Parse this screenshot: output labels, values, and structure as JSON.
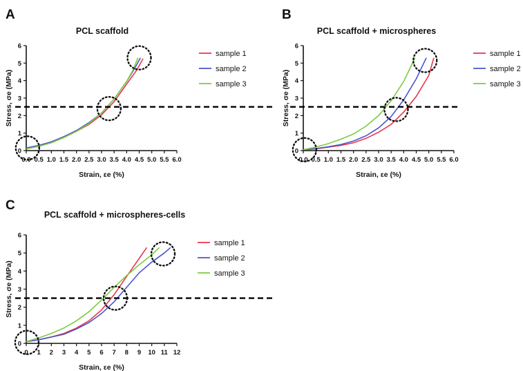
{
  "chart_data": [
    {
      "panel_label": "A",
      "type": "line",
      "title": "PCL scaffold",
      "xlabel": "Strain, εe (%)",
      "ylabel": "Stress, σe (MPa)",
      "xlim": [
        0,
        6
      ],
      "ylim": [
        0,
        6
      ],
      "xticks": [
        "0.0",
        "0.5",
        "1.0",
        "1.5",
        "2.0",
        "2.5",
        "3.0",
        "3.5",
        "4.0",
        "4.5",
        "5.0",
        "5.5",
        "6.0"
      ],
      "yticks": [
        "0",
        "1",
        "2",
        "3",
        "4",
        "5",
        "6"
      ],
      "reference_line_y": 2.5,
      "legend_position": "right",
      "series": [
        {
          "name": "sample 1",
          "color": "#e8354a",
          "x": [
            0.0,
            0.5,
            1.0,
            1.5,
            2.0,
            2.5,
            3.0,
            3.5,
            4.0,
            4.4,
            4.65
          ],
          "y": [
            0.1,
            0.25,
            0.45,
            0.75,
            1.1,
            1.5,
            2.05,
            2.8,
            3.8,
            4.6,
            5.25
          ]
        },
        {
          "name": "sample 2",
          "color": "#4a55c9",
          "x": [
            0.0,
            0.5,
            1.0,
            1.5,
            2.0,
            2.5,
            3.0,
            3.5,
            4.0,
            4.3,
            4.55
          ],
          "y": [
            0.15,
            0.3,
            0.5,
            0.8,
            1.15,
            1.6,
            2.15,
            2.95,
            3.95,
            4.65,
            5.3
          ]
        },
        {
          "name": "sample 3",
          "color": "#7acc3f",
          "x": [
            0.0,
            0.5,
            1.0,
            1.5,
            2.0,
            2.5,
            3.0,
            3.5,
            4.0,
            4.25,
            4.45
          ],
          "y": [
            0.1,
            0.25,
            0.45,
            0.75,
            1.1,
            1.55,
            2.15,
            2.95,
            3.95,
            4.6,
            5.3
          ]
        }
      ],
      "highlights": [
        [
          0.05,
          0.15
        ],
        [
          3.3,
          2.4
        ],
        [
          4.5,
          5.3
        ]
      ]
    },
    {
      "panel_label": "B",
      "type": "line",
      "title": "PCL scaffold + microspheres",
      "xlabel": "Strain, εe (%)",
      "ylabel": "Stress, σe (MPa)",
      "xlim": [
        0,
        6
      ],
      "ylim": [
        0,
        6
      ],
      "xticks": [
        "0.0",
        "0.5",
        "1.0",
        "1.5",
        "2.0",
        "2.5",
        "3.0",
        "3.5",
        "4.0",
        "4.5",
        "5.0",
        "5.5",
        "6.0"
      ],
      "yticks": [
        "0",
        "1",
        "2",
        "3",
        "4",
        "5",
        "6"
      ],
      "reference_line_y": 2.5,
      "legend_position": "right",
      "series": [
        {
          "name": "sample 1",
          "color": "#e8354a",
          "x": [
            0.0,
            0.5,
            1.0,
            1.5,
            2.0,
            2.5,
            3.0,
            3.5,
            4.0,
            4.5,
            5.0,
            5.2
          ],
          "y": [
            0.05,
            0.1,
            0.2,
            0.3,
            0.45,
            0.7,
            1.05,
            1.5,
            2.2,
            3.1,
            4.3,
            5.3
          ]
        },
        {
          "name": "sample 2",
          "color": "#4a55c9",
          "x": [
            0.0,
            0.5,
            1.0,
            1.5,
            2.0,
            2.5,
            3.0,
            3.5,
            4.0,
            4.5,
            4.9
          ],
          "y": [
            0.05,
            0.12,
            0.22,
            0.35,
            0.55,
            0.85,
            1.3,
            1.95,
            2.9,
            4.1,
            5.3
          ]
        },
        {
          "name": "sample 3",
          "color": "#7acc3f",
          "x": [
            0.0,
            0.5,
            1.0,
            1.5,
            2.0,
            2.5,
            3.0,
            3.5,
            4.0,
            4.45
          ],
          "y": [
            0.05,
            0.2,
            0.4,
            0.65,
            0.95,
            1.4,
            2.0,
            2.85,
            3.95,
            5.3
          ]
        }
      ],
      "highlights": [
        [
          0.05,
          0.05
        ],
        [
          3.7,
          2.35
        ],
        [
          4.85,
          5.15
        ]
      ]
    },
    {
      "panel_label": "C",
      "type": "line",
      "title": "PCL scaffold + microspheres-cells",
      "xlabel": "Strain, εe (%)",
      "ylabel": "Stress, σe (MPa)",
      "xlim": [
        0,
        12
      ],
      "ylim": [
        0,
        6
      ],
      "xticks": [
        "0",
        "1",
        "2",
        "3",
        "4",
        "5",
        "6",
        "7",
        "8",
        "9",
        "10",
        "11",
        "12"
      ],
      "yticks": [
        "0",
        "1",
        "2",
        "3",
        "4",
        "5",
        "6"
      ],
      "reference_line_y": 2.5,
      "legend_position": "right",
      "series": [
        {
          "name": "sample 1",
          "color": "#e8354a",
          "x": [
            0,
            1,
            2,
            3,
            4,
            5,
            6,
            7,
            8,
            9,
            9.6
          ],
          "y": [
            0.1,
            0.2,
            0.35,
            0.55,
            0.85,
            1.25,
            1.85,
            2.7,
            3.7,
            4.7,
            5.3
          ]
        },
        {
          "name": "sample 2",
          "color": "#4a55c9",
          "x": [
            0,
            1,
            2,
            3,
            4,
            5,
            6,
            7,
            8,
            9,
            10,
            11,
            11.5
          ],
          "y": [
            0.1,
            0.2,
            0.35,
            0.5,
            0.8,
            1.15,
            1.65,
            2.3,
            3.1,
            3.9,
            4.5,
            5.0,
            5.3
          ]
        },
        {
          "name": "sample 3",
          "color": "#7acc3f",
          "x": [
            0,
            1,
            2,
            3,
            4,
            5,
            6,
            7,
            8,
            9,
            10,
            10.6
          ],
          "y": [
            0.1,
            0.3,
            0.55,
            0.85,
            1.25,
            1.75,
            2.4,
            3.1,
            3.75,
            4.35,
            4.9,
            5.3
          ]
        }
      ],
      "highlights": [
        [
          0.05,
          0.05
        ],
        [
          7.1,
          2.5
        ],
        [
          10.9,
          4.95
        ]
      ]
    }
  ]
}
